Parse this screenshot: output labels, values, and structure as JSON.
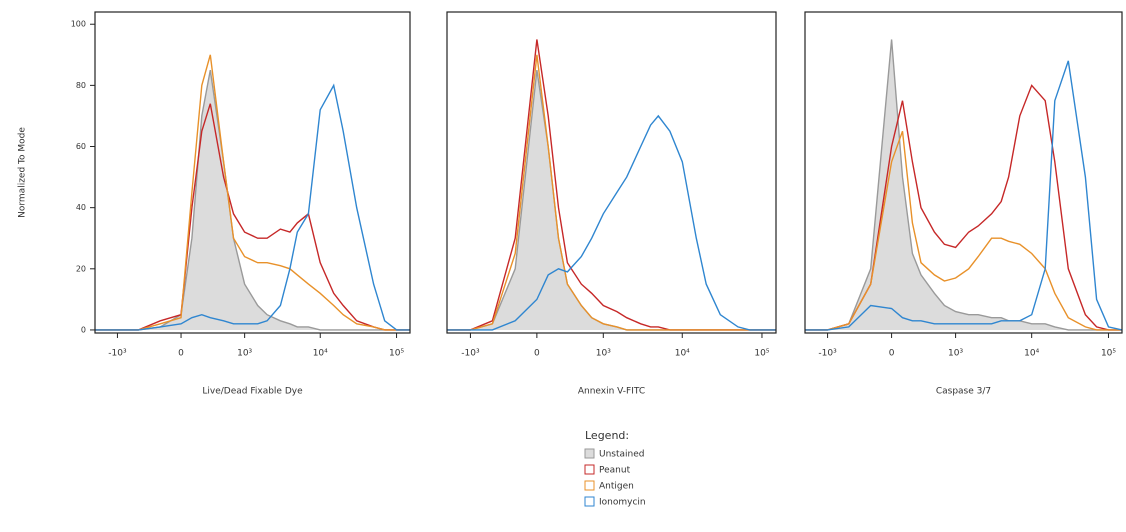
{
  "chart_data": [
    {
      "type": "line",
      "y_label": "Normalized To Mode",
      "x_label": "Live/Dead Fixable Dye",
      "x_scale": "biexponential",
      "x": [
        -2000,
        -1000,
        -500,
        -200,
        0,
        100,
        200,
        300,
        500,
        700,
        1000,
        1500,
        2000,
        3000,
        4000,
        5000,
        7000,
        10000,
        15000,
        20000,
        30000,
        50000,
        70000,
        100000,
        150000
      ],
      "xlim": [
        -2000,
        150000
      ],
      "xticks": [
        {
          "value": -1000,
          "label": "-10³"
        },
        0,
        {
          "value": 1000,
          "label": "10³"
        },
        {
          "value": 10000,
          "label": "10⁴"
        },
        {
          "value": 100000,
          "label": "10⁵"
        }
      ],
      "ylim": [
        -1,
        104
      ],
      "yticks": [
        0,
        20,
        40,
        60,
        80,
        100
      ],
      "series": [
        {
          "name": "Unstained",
          "color": "#9a9a9a",
          "fill": "#dcdcdc",
          "values": [
            0,
            0,
            0,
            1,
            5,
            30,
            70,
            85,
            55,
            30,
            15,
            8,
            5,
            3,
            2,
            1,
            1,
            0,
            0,
            0,
            0,
            0,
            0,
            0,
            0
          ]
        },
        {
          "name": "Peanut",
          "color": "#c62828",
          "values": [
            0,
            0,
            0,
            3,
            5,
            40,
            65,
            74,
            50,
            38,
            32,
            30,
            30,
            33,
            32,
            35,
            38,
            22,
            12,
            8,
            3,
            1,
            0,
            0,
            0
          ]
        },
        {
          "name": "Antigen",
          "color": "#e8912a",
          "values": [
            0,
            0,
            0,
            2,
            4,
            45,
            80,
            90,
            55,
            30,
            24,
            22,
            22,
            21,
            20,
            18,
            15,
            12,
            8,
            5,
            2,
            1,
            0,
            0,
            0
          ]
        },
        {
          "name": "Ionomycin",
          "color": "#2f86d0",
          "values": [
            0,
            0,
            0,
            1,
            2,
            4,
            5,
            4,
            3,
            2,
            2,
            2,
            3,
            8,
            20,
            32,
            38,
            72,
            80,
            65,
            40,
            15,
            3,
            0,
            0
          ]
        }
      ]
    },
    {
      "type": "line",
      "x_label": "Annexin V-FITC",
      "x_scale": "biexponential",
      "x": [
        -2000,
        -1000,
        -500,
        -200,
        0,
        100,
        200,
        300,
        500,
        700,
        1000,
        1500,
        2000,
        3000,
        4000,
        5000,
        7000,
        10000,
        15000,
        20000,
        30000,
        50000,
        70000,
        100000,
        150000
      ],
      "xlim": [
        -2000,
        150000
      ],
      "xticks": [
        {
          "value": -1000,
          "label": "-10³"
        },
        0,
        {
          "value": 1000,
          "label": "10³"
        },
        {
          "value": 10000,
          "label": "10⁴"
        },
        {
          "value": 100000,
          "label": "10⁵"
        }
      ],
      "ylim": [
        -1,
        104
      ],
      "series": [
        {
          "name": "Unstained",
          "color": "#9a9a9a",
          "fill": "#dcdcdc",
          "values": [
            0,
            0,
            2,
            20,
            85,
            60,
            30,
            15,
            8,
            4,
            2,
            1,
            0,
            0,
            0,
            0,
            0,
            0,
            0,
            0,
            0,
            0,
            0,
            0,
            0
          ]
        },
        {
          "name": "Peanut",
          "color": "#c62828",
          "values": [
            0,
            0,
            3,
            30,
            95,
            70,
            40,
            22,
            15,
            12,
            8,
            6,
            4,
            2,
            1,
            1,
            0,
            0,
            0,
            0,
            0,
            0,
            0,
            0,
            0
          ]
        },
        {
          "name": "Antigen",
          "color": "#e8912a",
          "values": [
            0,
            0,
            2,
            25,
            90,
            60,
            30,
            15,
            8,
            4,
            2,
            1,
            0,
            0,
            0,
            0,
            0,
            0,
            0,
            0,
            0,
            0,
            0,
            0,
            0
          ]
        },
        {
          "name": "Ionomycin",
          "color": "#2f86d0",
          "values": [
            0,
            0,
            0,
            3,
            10,
            18,
            20,
            19,
            24,
            30,
            38,
            45,
            50,
            60,
            67,
            70,
            65,
            55,
            30,
            15,
            5,
            1,
            0,
            0,
            0
          ]
        }
      ]
    },
    {
      "type": "line",
      "x_label": "Caspase 3/7",
      "x_scale": "biexponential",
      "x": [
        -2000,
        -1000,
        -500,
        -200,
        0,
        100,
        200,
        300,
        500,
        700,
        1000,
        1500,
        2000,
        3000,
        4000,
        5000,
        7000,
        10000,
        15000,
        20000,
        30000,
        50000,
        70000,
        100000,
        150000
      ],
      "xlim": [
        -2000,
        150000
      ],
      "xticks": [
        {
          "value": -1000,
          "label": "-10³"
        },
        0,
        {
          "value": 1000,
          "label": "10³"
        },
        {
          "value": 10000,
          "label": "10⁴"
        },
        {
          "value": 100000,
          "label": "10⁵"
        }
      ],
      "ylim": [
        -1,
        104
      ],
      "series": [
        {
          "name": "Unstained",
          "color": "#9a9a9a",
          "fill": "#dcdcdc",
          "values": [
            0,
            0,
            2,
            20,
            95,
            50,
            25,
            18,
            12,
            8,
            6,
            5,
            5,
            4,
            4,
            3,
            3,
            2,
            2,
            1,
            0,
            0,
            0,
            0,
            0
          ]
        },
        {
          "name": "Peanut",
          "color": "#c62828",
          "values": [
            0,
            0,
            2,
            15,
            60,
            75,
            55,
            40,
            32,
            28,
            27,
            32,
            34,
            38,
            42,
            50,
            70,
            80,
            75,
            55,
            20,
            5,
            1,
            0,
            0
          ]
        },
        {
          "name": "Antigen",
          "color": "#e8912a",
          "values": [
            0,
            0,
            2,
            15,
            55,
            65,
            35,
            22,
            18,
            16,
            17,
            20,
            24,
            30,
            30,
            29,
            28,
            25,
            20,
            12,
            4,
            1,
            0,
            0,
            0
          ]
        },
        {
          "name": "Ionomycin",
          "color": "#2f86d0",
          "values": [
            0,
            0,
            1,
            8,
            7,
            4,
            3,
            3,
            2,
            2,
            2,
            2,
            2,
            2,
            3,
            3,
            3,
            5,
            20,
            75,
            88,
            50,
            10,
            1,
            0
          ]
        }
      ]
    }
  ],
  "legend_title": "Legend:"
}
